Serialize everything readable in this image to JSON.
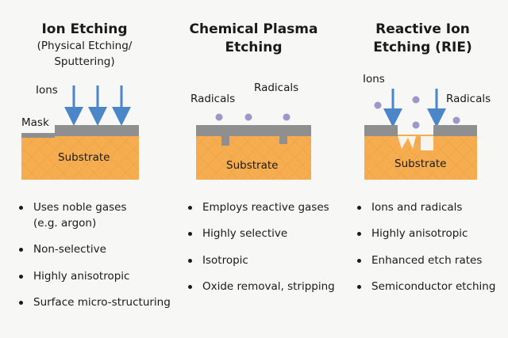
{
  "columns": [
    {
      "title": "Ion Etching",
      "subtitle": [
        "(Physical Etching/",
        "Sputtering)"
      ],
      "labels": {
        "ions": "Ions",
        "mask": "Mask",
        "substrate": "Substrate"
      },
      "bullets": [
        "Uses noble gases",
        "(e.g. argon)",
        "Non-selective",
        "Highly anisotropic",
        "Surface micro-structuring"
      ]
    },
    {
      "title": [
        "Chemical Plasma",
        "Etching"
      ],
      "labels": {
        "radicals_left": "Radicals",
        "radicals_right": "Radicals",
        "substrate": "Substrate"
      },
      "bullets": [
        "Employs reactive gases",
        "Highly selective",
        "Isotropic",
        "Oxide removal, stripping"
      ]
    },
    {
      "title": [
        "Reactive Ion",
        "Etching (RIE)"
      ],
      "labels": {
        "ions": "Ions",
        "radicals": "Radicals",
        "substrate": "Substrate"
      },
      "bullets": [
        "Ions and radicals",
        "Highly anisotropic",
        "Enhanced etch rates",
        "Semiconductor etching"
      ]
    }
  ],
  "colors": {
    "substrate": "#f6ad4f",
    "substrate_hatch": "#e8963a",
    "mask": "#8f8f8f",
    "arrow": "#4a86c8",
    "radical": "#9e97c8"
  }
}
